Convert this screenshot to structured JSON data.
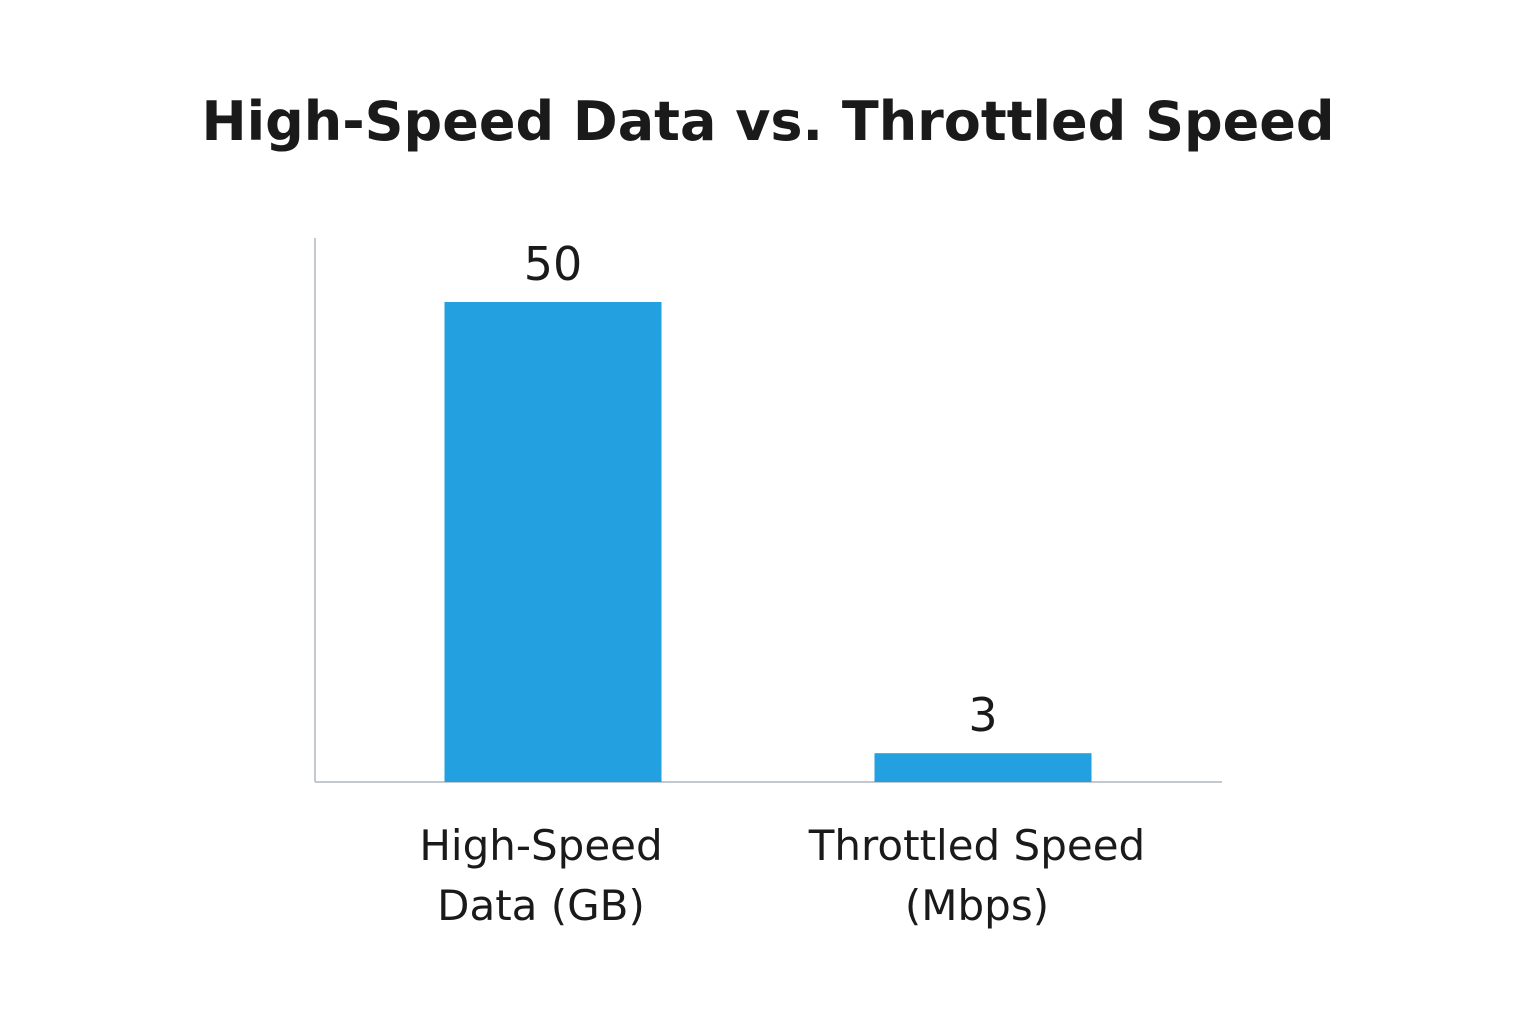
{
  "chart_data": {
    "type": "bar",
    "title": "High-Speed Data vs. Throttled Speed",
    "categories": [
      [
        "High-Speed",
        "Data (GB)"
      ],
      [
        "Throttled Speed",
        "(Mbps)"
      ]
    ],
    "values": [
      50,
      3
    ],
    "value_labels": [
      "50",
      "3"
    ],
    "ylim": [
      0,
      55
    ],
    "grid": false,
    "legend": "none",
    "bar_color": "#22a0df"
  }
}
